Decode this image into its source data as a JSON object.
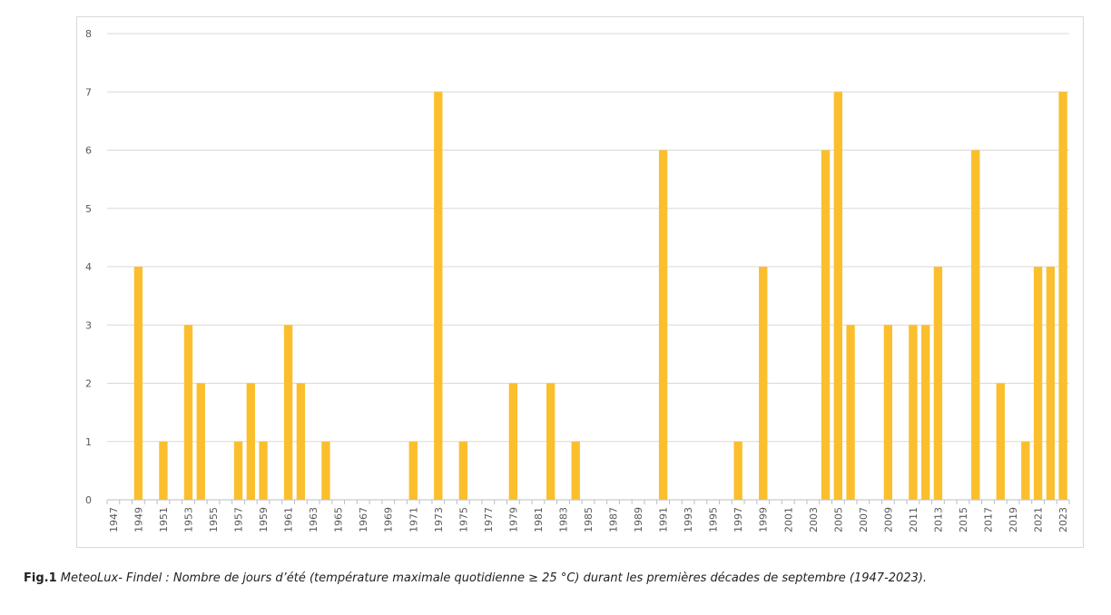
{
  "caption": {
    "label": "Fig.1",
    "text": " MeteoLux- Findel : Nombre de jours d’été (température maximale quotidienne ≥ 25 °C) durant les premières décades de septembre (1947-2023)."
  },
  "colors": {
    "bar": "#FBBF2D",
    "grid": "#d9d9d9",
    "axis": "#bfbfbf",
    "text": "#595959"
  },
  "chart_data": {
    "type": "bar",
    "title": "",
    "xlabel": "",
    "ylabel": "",
    "ylim": [
      0,
      8
    ],
    "yticks": [
      0,
      1,
      2,
      3,
      4,
      5,
      6,
      7,
      8
    ],
    "grid": true,
    "categories": [
      "1947",
      "1948",
      "1949",
      "1950",
      "1951",
      "1952",
      "1953",
      "1954",
      "1955",
      "1956",
      "1957",
      "1958",
      "1959",
      "1960",
      "1961",
      "1962",
      "1963",
      "1964",
      "1965",
      "1966",
      "1967",
      "1968",
      "1969",
      "1970",
      "1971",
      "1972",
      "1973",
      "1974",
      "1975",
      "1976",
      "1977",
      "1978",
      "1979",
      "1980",
      "1981",
      "1982",
      "1983",
      "1984",
      "1985",
      "1986",
      "1987",
      "1988",
      "1989",
      "1990",
      "1991",
      "1992",
      "1993",
      "1994",
      "1995",
      "1996",
      "1997",
      "1998",
      "1999",
      "2000",
      "2001",
      "2002",
      "2003",
      "2004",
      "2005",
      "2006",
      "2007",
      "2008",
      "2009",
      "2010",
      "2011",
      "2012",
      "2013",
      "2014",
      "2015",
      "2016",
      "2017",
      "2018",
      "2019",
      "2020",
      "2021",
      "2022",
      "2023"
    ],
    "values": [
      0,
      0,
      4,
      0,
      1,
      0,
      3,
      2,
      0,
      0,
      1,
      2,
      1,
      0,
      3,
      2,
      0,
      1,
      0,
      0,
      0,
      0,
      0,
      0,
      1,
      0,
      7,
      0,
      1,
      0,
      0,
      0,
      2,
      0,
      0,
      2,
      0,
      1,
      0,
      0,
      0,
      0,
      0,
      0,
      6,
      0,
      0,
      0,
      0,
      0,
      1,
      0,
      4,
      0,
      0,
      0,
      0,
      6,
      7,
      3,
      0,
      0,
      3,
      0,
      3,
      3,
      4,
      0,
      0,
      6,
      0,
      2,
      0,
      1,
      4,
      4,
      7
    ],
    "xtick_labels": [
      "1947",
      "1949",
      "1951",
      "1953",
      "1955",
      "1957",
      "1959",
      "1961",
      "1963",
      "1965",
      "1967",
      "1969",
      "1971",
      "1973",
      "1975",
      "1977",
      "1979",
      "1981",
      "1983",
      "1985",
      "1987",
      "1989",
      "1991",
      "1993",
      "1995",
      "1997",
      "1999",
      "2001",
      "2003",
      "2005",
      "2007",
      "2009",
      "2011",
      "2013",
      "2015",
      "2017",
      "2019",
      "2021",
      "2023"
    ]
  }
}
